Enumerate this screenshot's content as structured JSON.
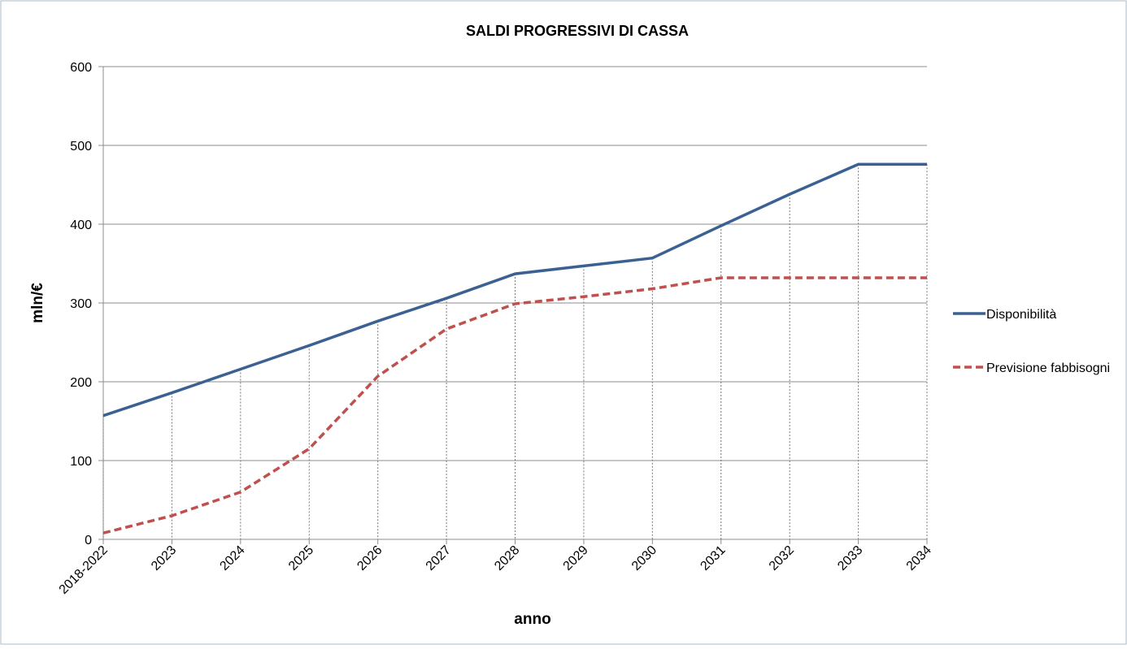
{
  "chart_data": {
    "type": "line",
    "title": "SALDI PROGRESSIVI DI CASSA",
    "x_label": "anno",
    "y_label": "mln/€",
    "categories": [
      "2018-2022",
      "2023",
      "2024",
      "2025",
      "2026",
      "2027",
      "2028",
      "2029",
      "2030",
      "2031",
      "2032",
      "2033",
      "2034"
    ],
    "series": [
      {
        "name": "Disponibilità",
        "color": "#3b6193",
        "dash": "solid",
        "values": [
          157,
          186,
          216,
          246,
          277,
          306,
          337,
          347,
          357,
          398,
          438,
          476,
          476
        ]
      },
      {
        "name": "Previsione fabbisogni",
        "color": "#c0504d",
        "dash": "dashed",
        "values": [
          8,
          30,
          60,
          115,
          207,
          267,
          299,
          308,
          318,
          332,
          332,
          332,
          332
        ]
      }
    ],
    "ylim": [
      0,
      600
    ],
    "yticks": [
      0,
      100,
      200,
      300,
      400,
      500,
      600
    ],
    "grid": true,
    "legend": "right",
    "drop_lines": true
  }
}
